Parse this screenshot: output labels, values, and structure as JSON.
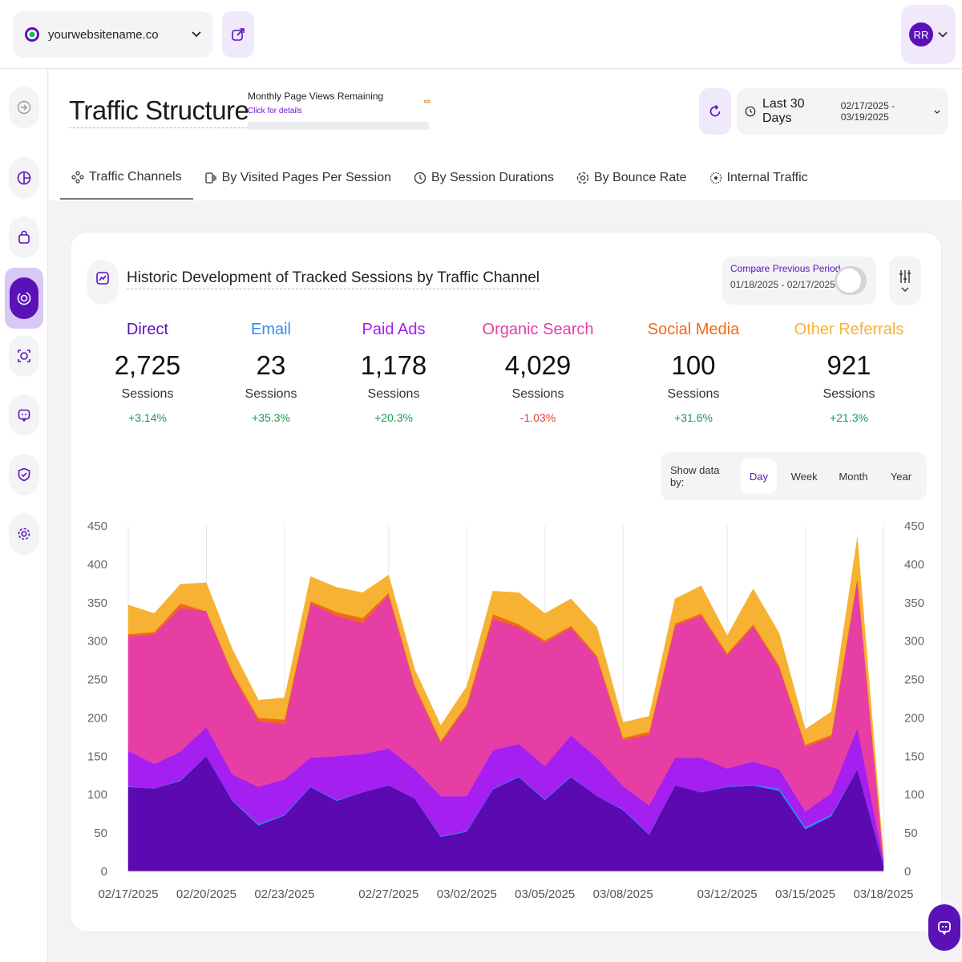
{
  "site": {
    "name": "yourwebsitename.co"
  },
  "user": {
    "initials": "RR"
  },
  "sidebar": {
    "items": [
      "collapse-icon",
      "dashboard-icon",
      "shopping-bag-icon",
      "traffic-icon",
      "target-icon",
      "feedback-icon",
      "shield-check-icon",
      "gear-icon"
    ]
  },
  "page": {
    "title": "Traffic Structure",
    "page_views_label": "Monthly Page Views Remaining",
    "page_views_link": "Click for details",
    "page_views_value": "∞"
  },
  "date_range": {
    "label": "Last 30 Days",
    "dates": "02/17/2025 - 03/19/2025"
  },
  "tabs": [
    {
      "label": "Traffic Channels",
      "icon": "channels-icon"
    },
    {
      "label": "By Visited Pages Per Session",
      "icon": "pages-icon"
    },
    {
      "label": "By Session Durations",
      "icon": "duration-icon"
    },
    {
      "label": "By Bounce Rate",
      "icon": "bounce-icon"
    },
    {
      "label": "Internal Traffic",
      "icon": "internal-icon"
    }
  ],
  "card": {
    "title": "Historic Development of Tracked Sessions by Traffic Channel",
    "compare_label": "Compare Previous Period",
    "compare_dates": "01/18/2025 - 02/17/2025"
  },
  "stats": [
    {
      "name": "Direct",
      "value": "2,725",
      "unit": "Sessions",
      "change": "+3.14%",
      "color": "#5a12b8",
      "change_color": "#1a9a55"
    },
    {
      "name": "Email",
      "value": "23",
      "unit": "Sessions",
      "change": "+35.3%",
      "color": "#2d8ff0",
      "change_color": "#1a9a55"
    },
    {
      "name": "Paid Ads",
      "value": "1,178",
      "unit": "Sessions",
      "change": "+20.3%",
      "color": "#a41ff0",
      "change_color": "#1a9a55"
    },
    {
      "name": "Organic Search",
      "value": "4,029",
      "unit": "Sessions",
      "change": "-1.03%",
      "color": "#e63ea4",
      "change_color": "#e0402e"
    },
    {
      "name": "Social Media",
      "value": "100",
      "unit": "Sessions",
      "change": "+31.6%",
      "color": "#f06a18",
      "change_color": "#1a9a55"
    },
    {
      "name": "Other Referrals",
      "value": "921",
      "unit": "Sessions",
      "change": "+21.3%",
      "color": "#f7b233",
      "change_color": "#1a9a55"
    }
  ],
  "show_by": {
    "label": "Show data by:",
    "options": [
      "Day",
      "Week",
      "Month",
      "Year"
    ],
    "selected": "Day"
  },
  "chart_data": {
    "type": "area",
    "stacked": true,
    "x": [
      "02/17/2025",
      "02/18/2025",
      "02/19/2025",
      "02/20/2025",
      "02/21/2025",
      "02/22/2025",
      "02/23/2025",
      "02/24/2025",
      "02/25/2025",
      "02/26/2025",
      "02/27/2025",
      "02/28/2025",
      "03/01/2025",
      "03/02/2025",
      "03/03/2025",
      "03/04/2025",
      "03/05/2025",
      "03/06/2025",
      "03/07/2025",
      "03/08/2025",
      "03/09/2025",
      "03/10/2025",
      "03/11/2025",
      "03/12/2025",
      "03/13/2025",
      "03/14/2025",
      "03/15/2025",
      "03/16/2025",
      "03/17/2025",
      "03/18/2025"
    ],
    "x_tick_labels": [
      "02/17/2025",
      "02/20/2025",
      "02/23/2025",
      "02/27/2025",
      "03/02/2025",
      "03/05/2025",
      "03/08/2025",
      "03/12/2025",
      "03/15/2025",
      "03/18/2025"
    ],
    "x_tick_indices": [
      0,
      3,
      6,
      10,
      13,
      16,
      19,
      23,
      26,
      29
    ],
    "ylim": [
      0,
      450
    ],
    "y_ticks": [
      0,
      50,
      100,
      150,
      200,
      250,
      300,
      350,
      400,
      450
    ],
    "grid": "vertical",
    "legend": "none",
    "series": [
      {
        "name": "Direct",
        "color": "#5a0ab0",
        "values": [
          110,
          108,
          118,
          150,
          92,
          60,
          73,
          110,
          92,
          103,
          112,
          95,
          45,
          52,
          107,
          123,
          93,
          123,
          98,
          80,
          48,
          112,
          103,
          110,
          112,
          105,
          55,
          72,
          133,
          8
        ]
      },
      {
        "name": "Email",
        "color": "#2d8ff0",
        "values": [
          1,
          0,
          1,
          0,
          1,
          2,
          1,
          1,
          1,
          0,
          0,
          0,
          1,
          1,
          1,
          1,
          1,
          1,
          0,
          1,
          1,
          0,
          0,
          1,
          1,
          3,
          3,
          2,
          0,
          1
        ]
      },
      {
        "name": "Paid Ads",
        "color": "#a41ff0",
        "values": [
          46,
          32,
          37,
          38,
          33,
          48,
          46,
          37,
          57,
          50,
          48,
          38,
          52,
          45,
          50,
          42,
          43,
          53,
          50,
          30,
          37,
          36,
          45,
          23,
          30,
          25,
          20,
          28,
          54,
          5
        ]
      },
      {
        "name": "Organic Search",
        "color": "#e63ea4",
        "values": [
          149,
          169,
          187,
          151,
          130,
          86,
          72,
          201,
          183,
          171,
          200,
          107,
          69,
          117,
          171,
          152,
          161,
          140,
          130,
          60,
          92,
          172,
          185,
          147,
          176,
          132,
          84,
          73,
          193,
          3
        ]
      },
      {
        "name": "Social Media",
        "color": "#f06a18",
        "values": [
          3,
          3,
          6,
          0,
          3,
          4,
          6,
          3,
          5,
          6,
          3,
          3,
          3,
          3,
          6,
          4,
          3,
          3,
          3,
          3,
          4,
          3,
          3,
          3,
          3,
          3,
          3,
          3,
          3,
          0
        ]
      },
      {
        "name": "Other Referrals",
        "color": "#f7b233",
        "values": [
          38,
          24,
          25,
          37,
          30,
          23,
          28,
          32,
          32,
          33,
          23,
          20,
          20,
          23,
          30,
          41,
          35,
          35,
          37,
          20,
          20,
          32,
          36,
          23,
          46,
          42,
          20,
          30,
          52,
          3
        ]
      }
    ]
  }
}
